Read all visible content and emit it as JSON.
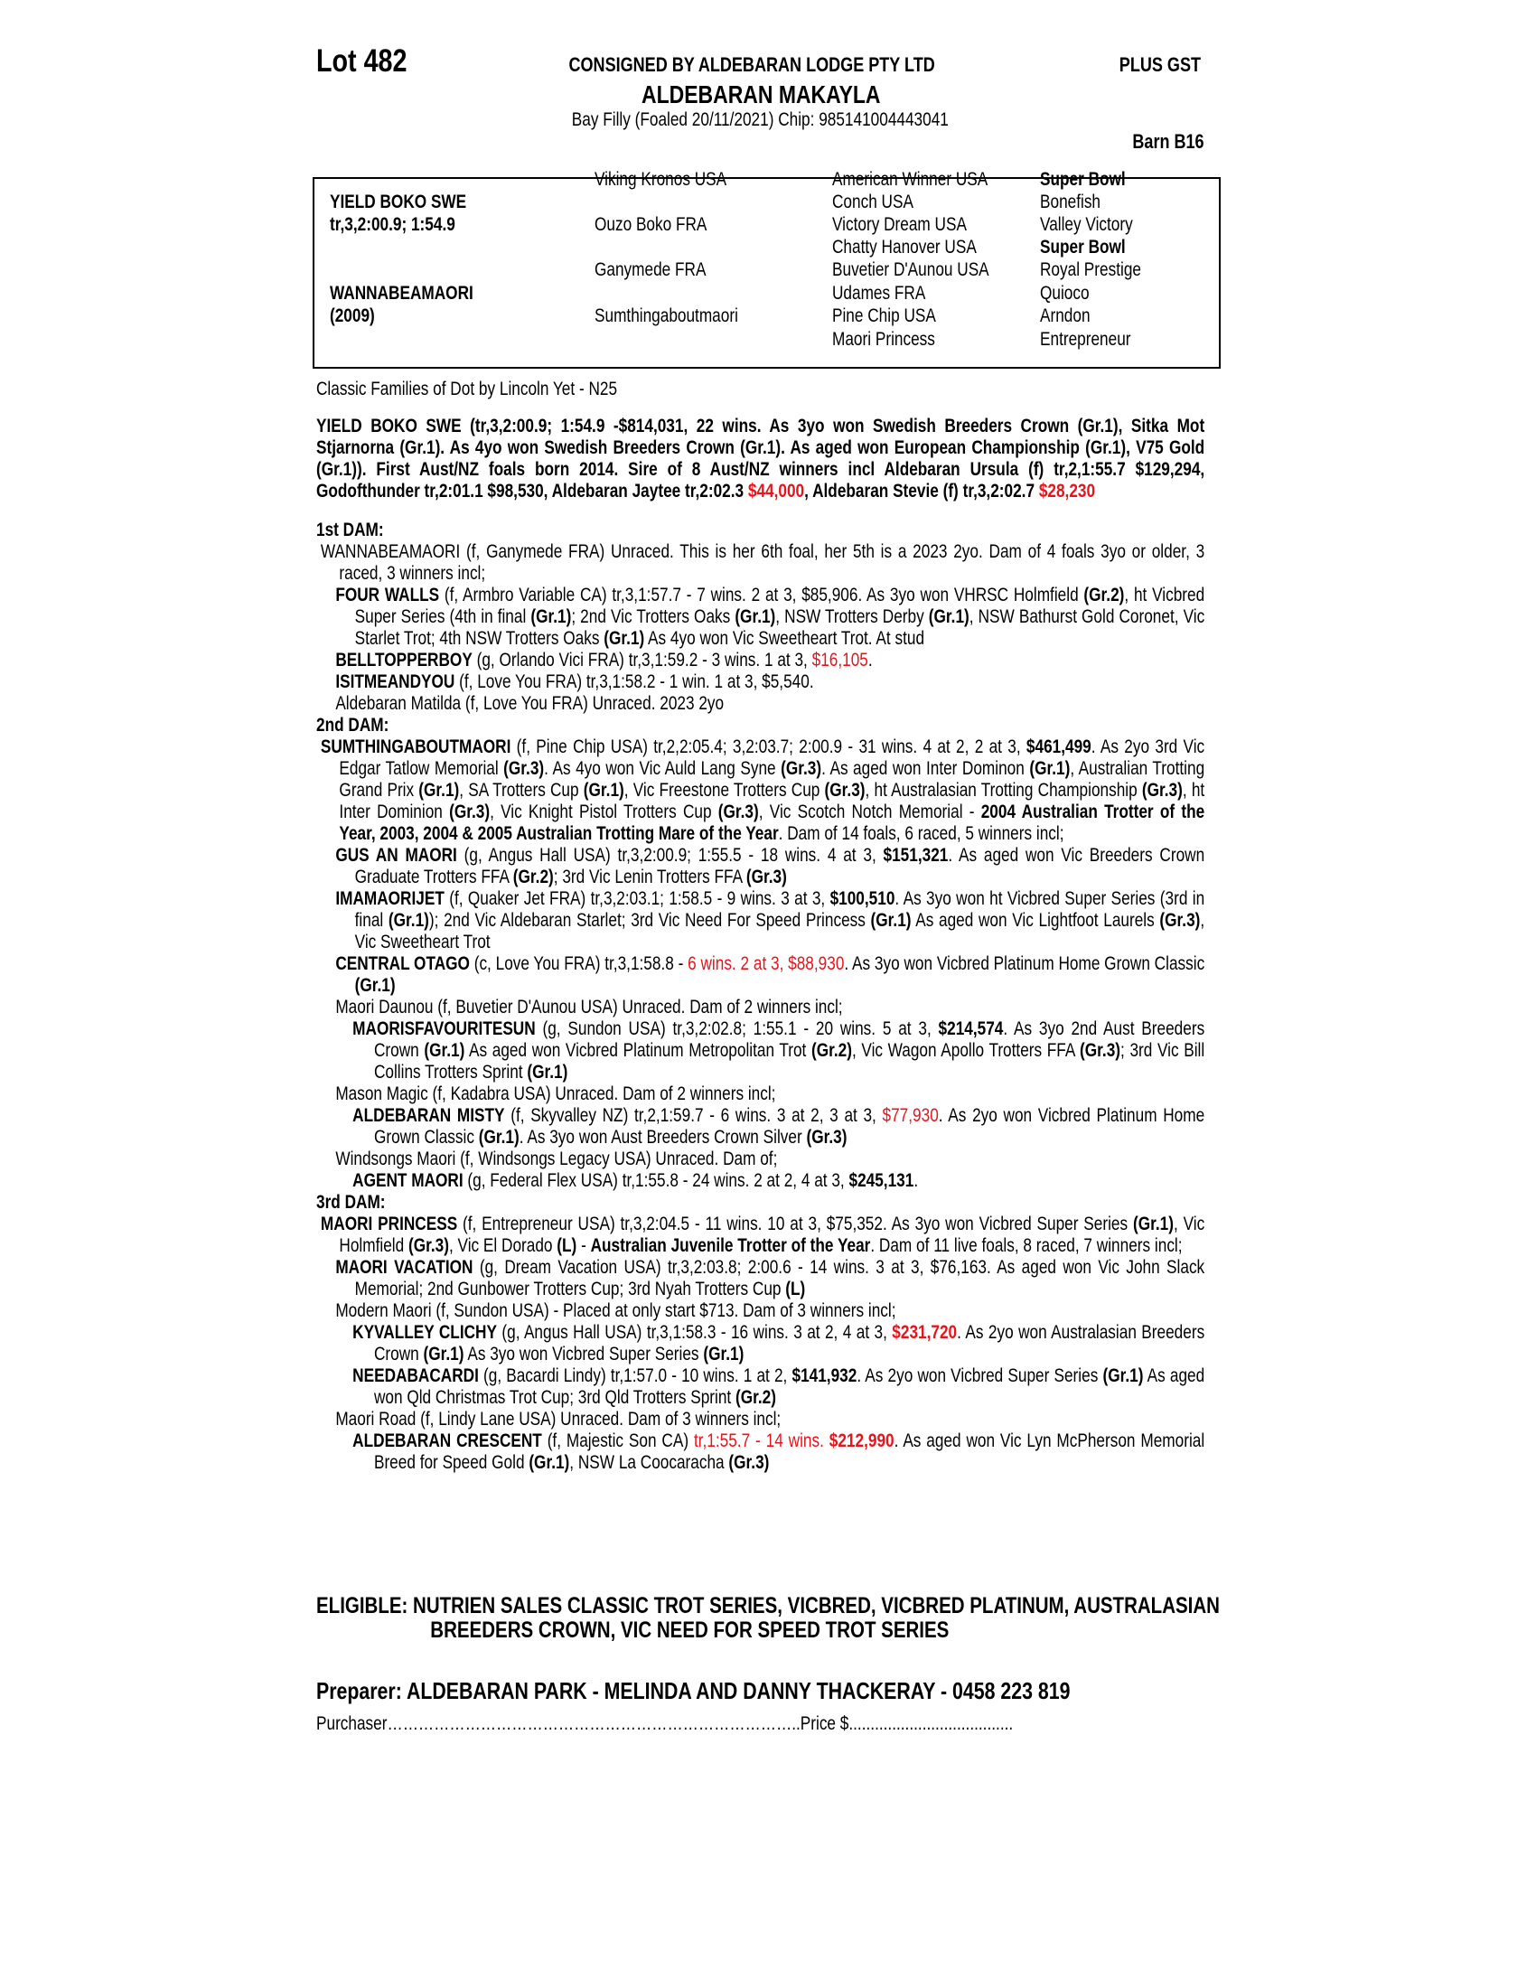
{
  "header": {
    "lot": "Lot 482",
    "consignor": "CONSIGNED BY ALDEBARAN LODGE PTY LTD",
    "plus_gst": "PLUS GST",
    "horse_name": "ALDEBARAN MAKAYLA",
    "description": "Bay Filly (Foaled 20/11/2021) Chip: 985141004443041",
    "barn": "Barn B16"
  },
  "pedigree": {
    "sire_name": "YIELD BOKO SWE",
    "sire_record": "tr,3,2:00.9; 1:54.9",
    "dam_name": "WANNABEAMAORI",
    "dam_year": "(2009)",
    "grandparents": [
      "Viking Kronos USA",
      "Ouzo Boko FRA",
      "Ganymede FRA",
      "Sumthingaboutmaori"
    ],
    "great_grandparents": [
      "American Winner USA",
      "Conch USA",
      "Victory Dream USA",
      "Chatty Hanover USA",
      "Buvetier D'Aunou USA",
      "Udames FRA",
      "Pine Chip USA",
      "Maori Princess"
    ],
    "great_great_grandsires": [
      "Super Bowl",
      "Bonefish",
      "Valley Victory",
      "Super Bowl",
      "Royal Prestige",
      "Quioco",
      "Arndon",
      "Entrepreneur"
    ]
  },
  "family": "Classic Families of Dot by Lincoln Yet - N25",
  "sire_paragraph": [
    [
      "YIELD BOKO SWE (tr,3,2:00.9; 1:54.9 -$814,031, 22 wins. As 3yo won Swedish Breeders Crown (Gr.1), Sitka Mot Stjarnorna (Gr.1). As 4yo won Swedish Breeders Crown (Gr.1). As aged won European Championship (Gr.1), V75 Gold (Gr.1)). First Aust/NZ foals born 2014. Sire of 8 Aust/NZ winners incl Aldebaran Ursula (f) tr,2,1:55.7 $129,294, Godofthunder tr,2:01.1 $98,530, Aldebaran Jaytee tr,2:02.3 ",
      "b"
    ],
    [
      "$44,000",
      "br"
    ],
    [
      ", Aldebaran Stevie (f) tr,3,2:02.7 ",
      "b"
    ],
    [
      "$28,230",
      "br"
    ]
  ],
  "highlight_color": "#e8141b",
  "blocks": [
    {
      "heading": "1st DAM:"
    },
    {
      "level": 0,
      "segments": [
        [
          "WANNABEAMAORI (f, Ganymede FRA) Unraced. This is her 6th foal, her 5th is a 2023 2yo. Dam of 4 foals 3yo or older, 3 raced, 3 winners incl;",
          ""
        ]
      ]
    },
    {
      "level": 1,
      "segments": [
        [
          "FOUR WALLS",
          "b"
        ],
        [
          " (f, Armbro Variable CA) tr,3,1:57.7 - 7 wins. 2 at 3, $85,906. As 3yo won VHRSC Holmfield ",
          ""
        ],
        [
          "(Gr.2)",
          "b"
        ],
        [
          ", ht Vicbred Super Series (4th in final ",
          ""
        ],
        [
          "(Gr.1)",
          "b"
        ],
        [
          "; 2nd Vic Trotters Oaks ",
          ""
        ],
        [
          "(Gr.1)",
          "b"
        ],
        [
          ", NSW Trotters Derby ",
          ""
        ],
        [
          "(Gr.1)",
          "b"
        ],
        [
          ", NSW Bathurst Gold Coronet, Vic Starlet Trot; 4th NSW Trotters Oaks ",
          ""
        ],
        [
          "(Gr.1)",
          "b"
        ],
        [
          " As 4yo won Vic Sweetheart Trot. At stud",
          ""
        ]
      ]
    },
    {
      "level": 1,
      "segments": [
        [
          "BELLTOPPERBOY",
          "b"
        ],
        [
          " (g, Orlando Vici FRA) tr,3,1:59.2 - 3 wins. 1 at 3, ",
          ""
        ],
        [
          "$16,105",
          "r"
        ],
        [
          ".",
          ""
        ]
      ]
    },
    {
      "level": 1,
      "segments": [
        [
          "ISITMEANDYOU",
          "b"
        ],
        [
          " (f, Love You FRA) tr,3,1:58.2 - 1 win. 1 at 3, $5,540.",
          ""
        ]
      ]
    },
    {
      "level": 1,
      "segments": [
        [
          "Aldebaran Matilda (f, Love You FRA) Unraced. 2023 2yo",
          ""
        ]
      ]
    },
    {
      "heading": "2nd DAM:"
    },
    {
      "level": 0,
      "segments": [
        [
          "SUMTHINGABOUTMAORI",
          "b"
        ],
        [
          " (f, Pine Chip USA) tr,2,2:05.4; 3,2:03.7; 2:00.9 - 31 wins. 4 at 2, 2 at 3, ",
          ""
        ],
        [
          "$461,499",
          "b"
        ],
        [
          ". As 2yo 3rd Vic Edgar Tatlow Memorial ",
          ""
        ],
        [
          "(Gr.3)",
          "b"
        ],
        [
          ". As 4yo won Vic Auld Lang Syne ",
          ""
        ],
        [
          "(Gr.3)",
          "b"
        ],
        [
          ". As aged won Inter Dominon ",
          ""
        ],
        [
          "(Gr.1)",
          "b"
        ],
        [
          ", Australian Trotting Grand Prix ",
          ""
        ],
        [
          "(Gr.1)",
          "b"
        ],
        [
          ", SA Trotters Cup ",
          ""
        ],
        [
          "(Gr.1)",
          "b"
        ],
        [
          ", Vic Freestone Trotters Cup ",
          ""
        ],
        [
          "(Gr.3)",
          "b"
        ],
        [
          ", ht Australasian Trotting Championship ",
          ""
        ],
        [
          "(Gr.3)",
          "b"
        ],
        [
          ", ht Inter Dominion ",
          ""
        ],
        [
          "(Gr.3)",
          "b"
        ],
        [
          ", Vic Knight Pistol Trotters Cup ",
          ""
        ],
        [
          "(Gr.3)",
          "b"
        ],
        [
          ", Vic Scotch Notch Memorial - ",
          ""
        ],
        [
          "2004 Australian Trotter of the Year, 2003, 2004 & 2005 Australian Trotting Mare of the Year",
          "b"
        ],
        [
          ". Dam of 14 foals, 6 raced, 5 winners incl;",
          ""
        ]
      ]
    },
    {
      "level": 1,
      "segments": [
        [
          "GUS AN MAORI",
          "b"
        ],
        [
          " (g, Angus Hall USA) tr,3,2:00.9; 1:55.5 - 18 wins. 4 at 3, ",
          ""
        ],
        [
          "$151,321",
          "b"
        ],
        [
          ". As aged won Vic Breeders Crown Graduate Trotters FFA ",
          ""
        ],
        [
          "(Gr.2)",
          "b"
        ],
        [
          "; 3rd Vic Lenin Trotters FFA ",
          ""
        ],
        [
          "(Gr.3)",
          "b"
        ]
      ]
    },
    {
      "level": 1,
      "segments": [
        [
          "IMAMAORIJET",
          "b"
        ],
        [
          " (f, Quaker Jet FRA) tr,3,2:03.1; 1:58.5 - 9 wins. 3 at 3, ",
          ""
        ],
        [
          "$100,510",
          "b"
        ],
        [
          ". As 3yo won ht Vicbred Super Series (3rd in final ",
          ""
        ],
        [
          "(Gr.1)",
          "b"
        ],
        [
          "); 2nd Vic Aldebaran Starlet; 3rd Vic Need For Speed Princess ",
          ""
        ],
        [
          "(Gr.1)",
          "b"
        ],
        [
          " As aged won Vic Lightfoot Laurels ",
          ""
        ],
        [
          "(Gr.3)",
          "b"
        ],
        [
          ", Vic Sweetheart Trot",
          ""
        ]
      ]
    },
    {
      "level": 1,
      "segments": [
        [
          "CENTRAL OTAGO",
          "b"
        ],
        [
          " (c, Love You FRA) tr,3,1:58.8 - ",
          ""
        ],
        [
          "6 wins. 2 at 3, $88,930",
          "r"
        ],
        [
          ". As 3yo won Vicbred Platinum Home Grown Classic ",
          ""
        ],
        [
          "(Gr.1)",
          "b"
        ]
      ]
    },
    {
      "level": 1,
      "segments": [
        [
          "Maori Daunou (f, Buvetier D'Aunou USA) Unraced. Dam of 2 winners incl;",
          ""
        ]
      ]
    },
    {
      "level": 2,
      "segments": [
        [
          "MAORISFAVOURITESUN",
          "b"
        ],
        [
          " (g, Sundon USA) tr,3,2:02.8; 1:55.1 - 20 wins. 5 at 3, ",
          ""
        ],
        [
          "$214,574",
          "b"
        ],
        [
          ". As 3yo 2nd Aust Breeders Crown ",
          ""
        ],
        [
          "(Gr.1)",
          "b"
        ],
        [
          " As aged won Vicbred Platinum Metropolitan Trot ",
          ""
        ],
        [
          "(Gr.2)",
          "b"
        ],
        [
          ", Vic Wagon Apollo Trotters FFA ",
          ""
        ],
        [
          "(Gr.3)",
          "b"
        ],
        [
          "; 3rd Vic Bill Collins Trotters Sprint ",
          ""
        ],
        [
          "(Gr.1)",
          "b"
        ]
      ]
    },
    {
      "level": 1,
      "segments": [
        [
          "Mason Magic (f, Kadabra USA) Unraced. Dam of 2 winners incl;",
          ""
        ]
      ]
    },
    {
      "level": 2,
      "segments": [
        [
          "ALDEBARAN MISTY",
          "b"
        ],
        [
          " (f, Skyvalley NZ) tr,2,1:59.7 - 6 wins. 3 at 2, 3 at 3, ",
          ""
        ],
        [
          "$77,930",
          "r"
        ],
        [
          ". As 2yo won Vicbred Platinum Home Grown Classic ",
          ""
        ],
        [
          "(Gr.1)",
          "b"
        ],
        [
          ". As 3yo won Aust Breeders Crown Silver ",
          ""
        ],
        [
          "(Gr.3)",
          "b"
        ]
      ]
    },
    {
      "level": 1,
      "segments": [
        [
          "Windsongs Maori (f, Windsongs Legacy USA) Unraced. Dam of;",
          ""
        ]
      ]
    },
    {
      "level": 2,
      "segments": [
        [
          "AGENT MAORI",
          "b"
        ],
        [
          " (g, Federal Flex USA) tr,1:55.8 - 24 wins. 2 at 2, 4 at 3, ",
          ""
        ],
        [
          "$245,131",
          "b"
        ],
        [
          ".",
          ""
        ]
      ]
    },
    {
      "heading": "3rd DAM:"
    },
    {
      "level": 0,
      "segments": [
        [
          "MAORI PRINCESS",
          "b"
        ],
        [
          " (f, Entrepreneur USA) tr,3,2:04.5 - 11 wins. 10 at 3, $75,352. As 3yo won Vicbred Super Series ",
          ""
        ],
        [
          "(Gr.1)",
          "b"
        ],
        [
          ", Vic Holmfield ",
          ""
        ],
        [
          "(Gr.3)",
          "b"
        ],
        [
          ", Vic El Dorado ",
          ""
        ],
        [
          "(L)",
          "b"
        ],
        [
          " - ",
          ""
        ],
        [
          "Australian Juvenile Trotter of the Year",
          "b"
        ],
        [
          ". Dam of 11 live foals, 8 raced, 7 winners incl;",
          ""
        ]
      ]
    },
    {
      "level": 1,
      "segments": [
        [
          "MAORI VACATION",
          "b"
        ],
        [
          " (g, Dream Vacation USA) tr,3,2:03.8; 2:00.6 - 14 wins. 3 at 3, $76,163. As aged won Vic John Slack Memorial; 2nd Gunbower Trotters Cup; 3rd Nyah Trotters Cup ",
          ""
        ],
        [
          "(L)",
          "b"
        ]
      ]
    },
    {
      "level": 1,
      "segments": [
        [
          "Modern Maori (f, Sundon USA) - Placed at only start $713. Dam of 3 winners incl;",
          ""
        ]
      ]
    },
    {
      "level": 2,
      "segments": [
        [
          "KYVALLEY CLICHY",
          "b"
        ],
        [
          " (g, Angus Hall USA) tr,3,1:58.3 - 16 wins. 3 at 2, 4 at 3, ",
          ""
        ],
        [
          "$231,720",
          "br"
        ],
        [
          ". As 2yo won Australasian Breeders Crown ",
          ""
        ],
        [
          "(Gr.1)",
          "b"
        ],
        [
          " As 3yo won Vicbred Super Series ",
          ""
        ],
        [
          "(Gr.1)",
          "b"
        ]
      ]
    },
    {
      "level": 2,
      "segments": [
        [
          "NEEDABACARDI",
          "b"
        ],
        [
          " (g, Bacardi Lindy) tr,1:57.0 - 10 wins. 1 at 2, ",
          ""
        ],
        [
          "$141,932",
          "b"
        ],
        [
          ". As 2yo won Vicbred Super Series ",
          ""
        ],
        [
          "(Gr.1)",
          "b"
        ],
        [
          " As aged won Qld Christmas Trot Cup; 3rd Qld Trotters Sprint ",
          ""
        ],
        [
          "(Gr.2)",
          "b"
        ]
      ]
    },
    {
      "level": 1,
      "segments": [
        [
          "Maori Road (f, Lindy Lane USA) Unraced. Dam of 3 winners incl;",
          ""
        ]
      ]
    },
    {
      "level": 2,
      "segments": [
        [
          "ALDEBARAN CRESCENT",
          "b"
        ],
        [
          " (f, Majestic Son CA) ",
          ""
        ],
        [
          "tr,1:55.7 - 14 wins. ",
          "r"
        ],
        [
          "$212,990",
          "br"
        ],
        [
          ". As aged won Vic Lyn McPherson Memorial Breed for Speed Gold ",
          ""
        ],
        [
          "(Gr.1)",
          "b"
        ],
        [
          ", NSW La Coocaracha ",
          ""
        ],
        [
          "(Gr.3)",
          "b"
        ]
      ]
    }
  ],
  "eligible": "ELIGIBLE: NUTRIEN SALES CLASSIC TROT SERIES, VICBRED, VICBRED PLATINUM, AUSTRALASIAN BREEDERS CROWN, VIC NEED FOR SPEED TROT SERIES",
  "preparer": "Preparer: ALDEBARAN PARK - MELINDA AND DANNY THACKERAY - 0458 223 819",
  "purchaser": "Purchaser……………………………………………………………………..Price $......................................"
}
